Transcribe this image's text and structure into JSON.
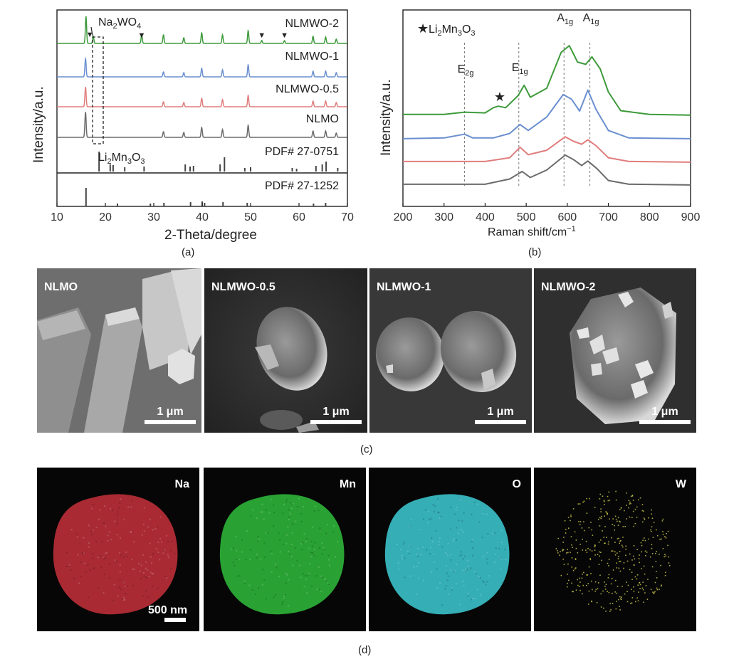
{
  "captions": {
    "a": "(a)",
    "b": "(b)",
    "c": "(c)",
    "d": "(d)"
  },
  "colors": {
    "green": "#3d9a3a",
    "blue": "#6a8fd0",
    "red": "#e07d7d",
    "gray": "#6b6b6b",
    "black": "#333333"
  },
  "chart_data": [
    {
      "type": "line",
      "panel": "a",
      "xlabel": "2-Theta/degree",
      "ylabel": "Intensity/a.u.",
      "xlim": [
        10,
        70
      ],
      "xticks": [
        10,
        20,
        30,
        40,
        50,
        60,
        70
      ],
      "series": [
        {
          "name": "NLMWO-2",
          "color": "green",
          "peaks": [
            [
              16.0,
              38
            ],
            [
              17.5,
              10
            ],
            [
              27.5,
              12
            ],
            [
              32.0,
              12
            ],
            [
              36.2,
              8
            ],
            [
              39.9,
              15
            ],
            [
              44.2,
              12
            ],
            [
              49.5,
              18
            ],
            [
              52.3,
              4
            ],
            [
              57.0,
              4
            ],
            [
              62.9,
              10
            ],
            [
              65.5,
              9
            ],
            [
              67.7,
              6
            ]
          ]
        },
        {
          "name": "NLMWO-1",
          "color": "blue",
          "peaks": [
            [
              15.9,
              26
            ],
            [
              32.0,
              7
            ],
            [
              36.2,
              6
            ],
            [
              39.9,
              12
            ],
            [
              44.2,
              10
            ],
            [
              49.5,
              17
            ],
            [
              62.9,
              8
            ],
            [
              65.5,
              8
            ],
            [
              67.7,
              6
            ]
          ]
        },
        {
          "name": "NLMWO-0.5",
          "color": "red",
          "peaks": [
            [
              15.9,
              28
            ],
            [
              32.0,
              7
            ],
            [
              36.2,
              6
            ],
            [
              39.9,
              12
            ],
            [
              44.2,
              10
            ],
            [
              49.5,
              16
            ],
            [
              62.9,
              8
            ],
            [
              65.5,
              8
            ],
            [
              67.7,
              6
            ]
          ]
        },
        {
          "name": "NLMO",
          "color": "gray",
          "peaks": [
            [
              15.9,
              36
            ],
            [
              32.0,
              8
            ],
            [
              36.2,
              7
            ],
            [
              39.9,
              14
            ],
            [
              44.2,
              11
            ],
            [
              49.5,
              17
            ],
            [
              62.9,
              9
            ],
            [
              65.5,
              9
            ],
            [
              67.7,
              6
            ]
          ]
        }
      ],
      "reference_patterns": [
        {
          "name": "PDF# 27-0751",
          "phase_sub": [
            "Li",
            "2",
            "Mn",
            "3",
            "O",
            "3"
          ],
          "sticks": [
            [
              18.7,
              28
            ],
            [
              21.0,
              10
            ],
            [
              21.6,
              9
            ],
            [
              24.0,
              6
            ],
            [
              28.0,
              7
            ],
            [
              36.5,
              10
            ],
            [
              37.5,
              7
            ],
            [
              38.2,
              8
            ],
            [
              43.7,
              10
            ],
            [
              44.6,
              20
            ],
            [
              48.8,
              5
            ],
            [
              50.0,
              6
            ],
            [
              58.6,
              5
            ],
            [
              59.5,
              4
            ],
            [
              63.5,
              8
            ],
            [
              64.8,
              10
            ],
            [
              65.6,
              14
            ],
            [
              68.0,
              5
            ]
          ]
        },
        {
          "name": "PDF# 27-1252",
          "sticks": [
            [
              16.0,
              26
            ],
            [
              22.5,
              4
            ],
            [
              29.3,
              4
            ],
            [
              32.1,
              5
            ],
            [
              37.6,
              6
            ],
            [
              40.0,
              7
            ],
            [
              40.5,
              5
            ],
            [
              44.3,
              6
            ],
            [
              49.3,
              5
            ],
            [
              63.0,
              4
            ],
            [
              65.5,
              5
            ]
          ]
        }
      ],
      "annotations": {
        "phase_label": [
          "Na",
          "2",
          "WO",
          "4"
        ],
        "marker": "▼",
        "marker_positions": [
          16.8,
          27.5,
          52.3,
          57.0
        ]
      }
    },
    {
      "type": "line",
      "panel": "b",
      "xlabel": "Raman shift/cm",
      "xlabel_sup": "−1",
      "ylabel": "Intensity/a.u.",
      "xlim": [
        200,
        900
      ],
      "xticks": [
        200,
        300,
        400,
        500,
        600,
        700,
        800,
        900
      ],
      "legend": {
        "marker": "★",
        "label": [
          "Li",
          "2",
          "Mn",
          "3",
          "O",
          "3"
        ]
      },
      "mode_labels": [
        {
          "base": "E",
          "sub": "2g",
          "x": 350
        },
        {
          "base": "E",
          "sub": "1g",
          "x": 482
        },
        {
          "base": "A",
          "sub": "1g",
          "x": 592
        },
        {
          "base": "A",
          "sub": "1g",
          "x": 655
        }
      ],
      "star_x": 432,
      "series": [
        {
          "name": "",
          "color": "green",
          "points": [
            [
              200,
              5
            ],
            [
              300,
              5
            ],
            [
              350,
              8
            ],
            [
              400,
              7
            ],
            [
              420,
              14
            ],
            [
              432,
              16
            ],
            [
              450,
              14
            ],
            [
              480,
              30
            ],
            [
              495,
              44
            ],
            [
              510,
              28
            ],
            [
              550,
              40
            ],
            [
              585,
              88
            ],
            [
              605,
              97
            ],
            [
              625,
              75
            ],
            [
              645,
              72
            ],
            [
              660,
              82
            ],
            [
              680,
              66
            ],
            [
              700,
              35
            ],
            [
              730,
              10
            ],
            [
              800,
              5
            ],
            [
              900,
              4
            ]
          ]
        },
        {
          "name": "",
          "color": "blue",
          "points": [
            [
              200,
              3
            ],
            [
              300,
              4
            ],
            [
              350,
              9
            ],
            [
              370,
              4
            ],
            [
              420,
              4
            ],
            [
              460,
              10
            ],
            [
              485,
              22
            ],
            [
              505,
              14
            ],
            [
              550,
              32
            ],
            [
              590,
              62
            ],
            [
              610,
              56
            ],
            [
              630,
              40
            ],
            [
              650,
              68
            ],
            [
              670,
              42
            ],
            [
              700,
              14
            ],
            [
              750,
              4
            ],
            [
              900,
              3
            ]
          ]
        },
        {
          "name": "",
          "color": "red",
          "points": [
            [
              200,
              3
            ],
            [
              300,
              3
            ],
            [
              400,
              3
            ],
            [
              460,
              8
            ],
            [
              485,
              22
            ],
            [
              505,
              12
            ],
            [
              550,
              18
            ],
            [
              595,
              36
            ],
            [
              615,
              30
            ],
            [
              635,
              26
            ],
            [
              650,
              32
            ],
            [
              670,
              24
            ],
            [
              700,
              8
            ],
            [
              750,
              3
            ],
            [
              900,
              2
            ]
          ]
        },
        {
          "name": "",
          "color": "gray",
          "points": [
            [
              200,
              3
            ],
            [
              300,
              3
            ],
            [
              400,
              3
            ],
            [
              460,
              10
            ],
            [
              490,
              20
            ],
            [
              510,
              12
            ],
            [
              550,
              22
            ],
            [
              595,
              42
            ],
            [
              615,
              36
            ],
            [
              635,
              28
            ],
            [
              650,
              34
            ],
            [
              672,
              24
            ],
            [
              700,
              8
            ],
            [
              750,
              3
            ],
            [
              900,
              2
            ]
          ]
        }
      ]
    }
  ],
  "sem_panels": [
    {
      "title": "NLMO",
      "scale": "1 μm"
    },
    {
      "title": "NLMWO-0.5",
      "scale": "1 μm"
    },
    {
      "title": "NLMWO-1",
      "scale": "1 μm"
    },
    {
      "title": "NLMWO-2",
      "scale": "1 μm"
    }
  ],
  "eds_panels": [
    {
      "element": "Na",
      "color": "#c0303a"
    },
    {
      "element": "Mn",
      "color": "#2fb83a"
    },
    {
      "element": "O",
      "color": "#3cc6cf"
    },
    {
      "element": "W",
      "color": "#c8c44a"
    }
  ],
  "eds_scale": "500 nm"
}
